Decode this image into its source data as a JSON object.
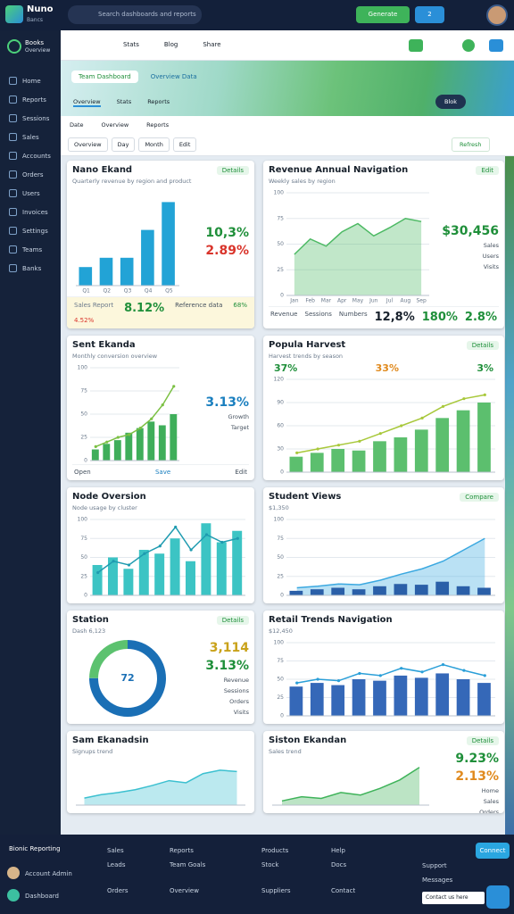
{
  "topbar": {
    "brand": "Nuno",
    "brand_sub": "Bancs",
    "search": "Search dashboards and reports",
    "primary_button": "Generate",
    "alert_count": "2"
  },
  "sidebar": {
    "brand": "Books",
    "brand_sub": "Overview",
    "items": [
      "Home",
      "Reports",
      "Sessions",
      "Sales",
      "Accounts",
      "Orders",
      "Users",
      "Invoices",
      "Settings",
      "Teams",
      "Banks"
    ]
  },
  "toolbar": {
    "items": [
      "Stats",
      "Blog",
      "Share"
    ]
  },
  "banner": {
    "tabs": [
      "Team Dashboard",
      "Overview Data"
    ],
    "subtabs": [
      "Overview",
      "Stats",
      "Reports"
    ],
    "right": "Blok"
  },
  "filters": {
    "row1": [
      "Date",
      "Overview",
      "Reports"
    ],
    "row2": [
      "Overview",
      "Day",
      "Month",
      "Edit"
    ],
    "refresh": "Refresh"
  },
  "cards": [
    {
      "title": "Nano Ekand",
      "subtitle": "Quarterly revenue by region and product",
      "badge": "Details",
      "kpis": [
        {
          "text": "10,3%",
          "color": "#1f8f3a"
        },
        {
          "text": "2.89%",
          "color": "#d9342b"
        }
      ],
      "chart": {
        "type": "bar",
        "categories": [
          "Q1",
          "Q2",
          "Q3",
          "Q4",
          "Q5"
        ],
        "ylim": [
          0,
          10
        ],
        "series": [
          {
            "kind": "bar",
            "color": "#22a3d6",
            "values": [
              2,
              3,
              3,
              6,
              9
            ]
          }
        ]
      },
      "strip": [
        {
          "text": "Sales Report",
          "color": "#6b7a8c"
        },
        {
          "text": "8.12%",
          "color": "#1f8f3a"
        },
        {
          "text": "Reference data",
          "color": "#44505e"
        },
        {
          "text": "68%",
          "color": "#1f8f3a"
        },
        {
          "text": "4.52%",
          "color": "#d9342b"
        }
      ]
    },
    {
      "title": "Revenue Annual Navigation",
      "subtitle": "Weekly sales by region",
      "badge": "Edit",
      "kpis": [
        {
          "text": "$30,456",
          "color": "#1f8f3a"
        }
      ],
      "legend": [
        "Sales",
        "Users",
        "Visits"
      ],
      "chart": {
        "type": "area",
        "categories": [
          "Jan",
          "Feb",
          "Mar",
          "Apr",
          "May",
          "Jun",
          "Jul",
          "Aug",
          "Sep"
        ],
        "ylim": [
          0,
          100
        ],
        "yticks": [
          0,
          25,
          50,
          75,
          100
        ],
        "series": [
          {
            "kind": "area",
            "color": "#4cb963",
            "values": [
              40,
              55,
              48,
              62,
              70,
              58,
              66,
              75,
              72
            ]
          }
        ]
      },
      "strip": [
        {
          "text": "Revenue",
          "color": "#44505e"
        },
        {
          "text": "Sessions",
          "color": "#44505e"
        },
        {
          "text": "Numbers",
          "color": "#44505e"
        },
        {
          "text": "12,8%",
          "color": "#17202b"
        },
        {
          "text": "180%",
          "color": "#1f8f3a"
        },
        {
          "text": "2.8%",
          "color": "#1f8f3a"
        }
      ]
    },
    {
      "title": "Sent Ekanda",
      "subtitle": "Monthly conversion overview",
      "kpis": [
        {
          "text": "3.13%",
          "color": "#1a7fbf"
        }
      ],
      "legend": [
        "Growth",
        "Target"
      ],
      "chart": {
        "type": "combo",
        "ylim": [
          0,
          100
        ],
        "yticks": [
          0,
          25,
          50,
          75,
          100
        ],
        "series": [
          {
            "kind": "bar",
            "color": "#3fae5a",
            "values": [
              12,
              18,
              22,
              30,
              35,
              42,
              38,
              50
            ]
          },
          {
            "kind": "line",
            "color": "#7bc043",
            "values": [
              15,
              20,
              25,
              28,
              35,
              45,
              60,
              80
            ]
          }
        ]
      },
      "strip": [
        {
          "text": "Open",
          "color": "#44505e"
        },
        {
          "text": "Save",
          "color": "#1a7fbf"
        },
        {
          "text": "Edit",
          "color": "#44505e"
        }
      ]
    },
    {
      "title": "Popula Harvest",
      "subtitle": "Harvest trends by season",
      "badge": "Details",
      "stats": [
        {
          "text": "37%",
          "color": "#1f8f3a"
        },
        {
          "text": "33%",
          "color": "#e08a1e"
        },
        {
          "text": "3%",
          "color": "#1f8f3a"
        }
      ],
      "chart": {
        "type": "combo",
        "ylim": [
          0,
          120
        ],
        "yticks": [
          0,
          30,
          60,
          90,
          120
        ],
        "series": [
          {
            "kind": "bar",
            "color": "#5cbf6e",
            "values": [
              20,
              25,
              30,
              28,
              40,
              45,
              55,
              70,
              80,
              90
            ]
          },
          {
            "kind": "line",
            "color": "#a8c83a",
            "values": [
              25,
              30,
              35,
              40,
              50,
              60,
              70,
              85,
              95,
              100
            ]
          }
        ]
      }
    },
    {
      "title": "Node Oversion",
      "subtitle": "Node usage by cluster",
      "chart": {
        "type": "combo",
        "ylim": [
          0,
          100
        ],
        "yticks": [
          0,
          25,
          50,
          75,
          100
        ],
        "series": [
          {
            "kind": "bar",
            "color": "#3cc4c4",
            "values": [
              40,
              50,
              35,
              60,
              55,
              75,
              45,
              95,
              70,
              85
            ]
          },
          {
            "kind": "line",
            "color": "#1e9bb0",
            "values": [
              30,
              45,
              40,
              55,
              65,
              90,
              60,
              80,
              70,
              75
            ]
          }
        ]
      }
    },
    {
      "title": "Student Views",
      "subtitle": "$1,350",
      "badge": "Compare",
      "chart": {
        "type": "combo",
        "ylim": [
          0,
          100
        ],
        "yticks": [
          0,
          25,
          50,
          75,
          100
        ],
        "series": [
          {
            "kind": "area",
            "color": "#3aa8e0",
            "values": [
              10,
              12,
              15,
              14,
              20,
              28,
              35,
              45,
              60,
              75
            ]
          },
          {
            "kind": "bar",
            "color": "#2a5fa8",
            "values": [
              6,
              8,
              10,
              8,
              12,
              15,
              14,
              18,
              12,
              10
            ]
          }
        ]
      }
    },
    {
      "title": "Station",
      "subtitle": "Dash 6,123",
      "badge": "Details",
      "kpis": [
        {
          "text": "3,114",
          "color": "#c9a21a"
        },
        {
          "text": "3.13%",
          "color": "#1f8f3a"
        }
      ],
      "legend": [
        "Revenue",
        "Sessions",
        "Orders",
        "Visits"
      ],
      "chart": {
        "type": "donut",
        "center": "72",
        "values": [
          75,
          25
        ],
        "colors": [
          "#1a6fb5",
          "#5cc26f"
        ]
      }
    },
    {
      "title": "Retail Trends Navigation",
      "subtitle": "$12,450",
      "chart": {
        "type": "combo",
        "ylim": [
          0,
          100
        ],
        "yticks": [
          0,
          25,
          50,
          75,
          100
        ],
        "series": [
          {
            "kind": "bar",
            "color": "#3568b8",
            "values": [
              40,
              45,
              42,
              50,
              48,
              55,
              52,
              58,
              50,
              45
            ]
          },
          {
            "kind": "line",
            "color": "#2a9fd8",
            "values": [
              45,
              50,
              48,
              58,
              55,
              65,
              60,
              70,
              62,
              55
            ]
          }
        ]
      }
    },
    {
      "title": "Sam Ekanadsin",
      "subtitle": "Signups trend",
      "chart": {
        "type": "area",
        "ylim": [
          0,
          60
        ],
        "series": [
          {
            "kind": "area",
            "color": "#3cc0d0",
            "values": [
              10,
              15,
              18,
              22,
              28,
              35,
              32,
              45,
              50,
              48
            ]
          }
        ]
      }
    },
    {
      "title": "Siston Ekandan",
      "subtitle": "Sales trend",
      "badge": "Details",
      "kpis": [
        {
          "text": "9.23%",
          "color": "#1f8f3a"
        },
        {
          "text": "2.13%",
          "color": "#e08a1e"
        }
      ],
      "legend": [
        "Home",
        "Sales",
        "Orders"
      ],
      "chart": {
        "type": "area",
        "ylim": [
          0,
          50
        ],
        "series": [
          {
            "kind": "area",
            "color": "#3fb35a",
            "values": [
              5,
              10,
              8,
              15,
              12,
              20,
              30,
              45
            ]
          }
        ]
      }
    }
  ],
  "footer": {
    "brand": "Bionic Reporting",
    "users": [
      "Account Admin",
      "Dashboard"
    ],
    "columns": [
      [
        "Sales",
        "Leads",
        "Orders"
      ],
      [
        "Reports",
        "Team Goals",
        "Overview"
      ],
      [
        "Products",
        "Stock",
        "Suppliers"
      ],
      [
        "Help",
        "Docs",
        "Contact"
      ]
    ],
    "cta": "Connect",
    "chat": [
      "Support",
      "Messages"
    ],
    "contact": "Contact us here"
  }
}
